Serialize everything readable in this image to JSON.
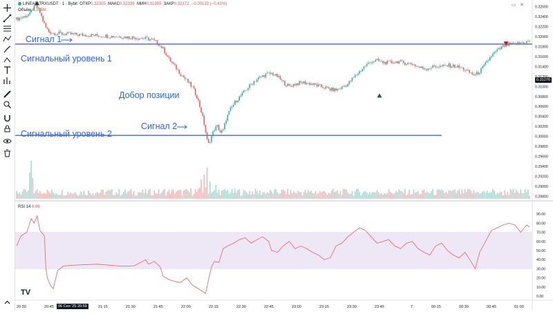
{
  "legend": {
    "symbol": "LINEAR:TRXUSDT · 1 · Bybit",
    "open_label": "ОТКР",
    "open": "0.32305",
    "high_label": "МАКС",
    "high": "0.32339",
    "low_label": "МИН",
    "low": "0.31955",
    "close_label": "ЗАКР",
    "close": "0.32172",
    "change": "−0.00133 (−0.41%)",
    "volume_label": "Объём",
    "volume": "8.355M"
  },
  "rsi": {
    "label": "RSI 14",
    "value": "6.96"
  },
  "annotations": {
    "signal1": "Сигнал 1",
    "level1": "Сигнальный уровень 1",
    "add_position": "Добор позиции",
    "signal2": "Сигнал 2",
    "level2": "Сигнальный уровень 2"
  },
  "current_price_tag": "0.31276",
  "highlighted_time": "06 Сен '25   20:59",
  "logo_text": "TV",
  "colors": {
    "up": "#26a69a",
    "down": "#ef5350",
    "level_line": "#5b7fe3",
    "rsi_line": "#f05c5c",
    "rsi_band": "#ede7f6",
    "annotation": "#2962ff"
  },
  "toolbar_icons": [
    "crosshair-icon",
    "trend-line-icon",
    "fib-icon",
    "brush-icon",
    "text-icon",
    "measure-icon",
    "pattern-icon",
    "prediction-icon",
    "ruler-icon",
    "zoom-icon",
    "magnet-icon",
    "lock-drawing-icon",
    "eye-icon",
    "delete-icon"
  ],
  "chart_data": {
    "type": "candlestick",
    "title": "LINEAR:TRXUSDT · 1 · Bybit",
    "y_ticks": [
      "0.32600",
      "0.32400",
      "0.32200",
      "0.32000",
      "0.31800",
      "0.31600",
      "0.31400",
      "0.31200",
      "0.31000",
      "0.30800",
      "0.30600",
      "0.30400",
      "0.30200",
      "0.30000",
      "0.29800",
      "0.29600",
      "0.29400",
      "0.29200",
      "0.29000",
      "0.28800"
    ],
    "x_ticks": [
      "20:30",
      "20:45",
      "21:15",
      "21:30",
      "21:45",
      "22:00",
      "22:15",
      "22:30",
      "22:45",
      "23:00",
      "23:15",
      "23:30",
      "23:45",
      "7",
      "00:15",
      "00:30",
      "00:45",
      "01:00"
    ],
    "ylim": [
      0.2875,
      0.3265
    ],
    "levels": [
      {
        "name": "Сигнальный уровень 1",
        "price": 0.3185
      },
      {
        "name": "Сигнальный уровень 2",
        "price": 0.3002
      }
    ],
    "price_path": [
      [
        0,
        0.3235
      ],
      [
        5,
        0.324
      ],
      [
        9,
        0.3245
      ],
      [
        11,
        0.3255
      ],
      [
        13,
        0.3262
      ],
      [
        14,
        0.3258
      ],
      [
        16,
        0.3248
      ],
      [
        18,
        0.3232
      ],
      [
        20,
        0.3218
      ],
      [
        22,
        0.321
      ],
      [
        25,
        0.3207
      ],
      [
        30,
        0.3206
      ],
      [
        40,
        0.3204
      ],
      [
        55,
        0.3202
      ],
      [
        70,
        0.32
      ],
      [
        80,
        0.3198
      ],
      [
        88,
        0.3196
      ],
      [
        92,
        0.3194
      ],
      [
        96,
        0.3188
      ],
      [
        100,
        0.3175
      ],
      [
        104,
        0.3155
      ],
      [
        108,
        0.314
      ],
      [
        112,
        0.3125
      ],
      [
        116,
        0.3112
      ],
      [
        120,
        0.3098
      ],
      [
        123,
        0.308
      ],
      [
        126,
        0.305
      ],
      [
        128,
        0.3025
      ],
      [
        130,
        0.2992
      ],
      [
        131,
        0.2985
      ],
      [
        133,
        0.3
      ],
      [
        135,
        0.3015
      ],
      [
        137,
        0.302
      ],
      [
        139,
        0.3008
      ],
      [
        141,
        0.3012
      ],
      [
        143,
        0.3035
      ],
      [
        146,
        0.3055
      ],
      [
        150,
        0.3072
      ],
      [
        154,
        0.3085
      ],
      [
        158,
        0.3098
      ],
      [
        162,
        0.311
      ],
      [
        166,
        0.3118
      ],
      [
        170,
        0.3124
      ],
      [
        174,
        0.3126
      ],
      [
        178,
        0.312
      ],
      [
        182,
        0.3108
      ],
      [
        186,
        0.31
      ],
      [
        190,
        0.3105
      ],
      [
        195,
        0.3108
      ],
      [
        200,
        0.3106
      ],
      [
        205,
        0.3102
      ],
      [
        210,
        0.3098
      ],
      [
        214,
        0.3094
      ],
      [
        218,
        0.3093
      ],
      [
        222,
        0.3098
      ],
      [
        226,
        0.3105
      ],
      [
        230,
        0.3118
      ],
      [
        234,
        0.313
      ],
      [
        238,
        0.3142
      ],
      [
        242,
        0.315
      ],
      [
        246,
        0.3152
      ],
      [
        250,
        0.3148
      ],
      [
        255,
        0.3148
      ],
      [
        260,
        0.315
      ],
      [
        265,
        0.3147
      ],
      [
        270,
        0.3145
      ],
      [
        275,
        0.3138
      ],
      [
        280,
        0.3136
      ],
      [
        285,
        0.314
      ],
      [
        290,
        0.314
      ],
      [
        295,
        0.3142
      ],
      [
        300,
        0.314
      ],
      [
        305,
        0.3135
      ],
      [
        308,
        0.313
      ],
      [
        311,
        0.3125
      ],
      [
        313,
        0.3123
      ],
      [
        316,
        0.313
      ],
      [
        320,
        0.3145
      ],
      [
        324,
        0.3162
      ],
      [
        328,
        0.3172
      ],
      [
        332,
        0.318
      ],
      [
        336,
        0.3184
      ],
      [
        340,
        0.3185
      ],
      [
        345,
        0.3188
      ],
      [
        350,
        0.319
      ]
    ],
    "volume_spikes": [
      [
        9,
        0.38
      ],
      [
        10,
        0.55
      ],
      [
        11,
        0.3
      ],
      [
        126,
        0.28
      ],
      [
        128,
        0.35
      ],
      [
        130,
        0.45
      ],
      [
        132,
        0.25
      ],
      [
        136,
        0.2
      ],
      [
        295,
        0.12
      ],
      [
        330,
        0.1
      ]
    ],
    "rsi_ylim": [
      0,
      100
    ],
    "rsi_ticks": [
      "90.00",
      "80.00",
      "70.00",
      "60.00",
      "50.00",
      "40.00",
      "30.00",
      "20.00",
      "10.00",
      "0.00"
    ],
    "rsi_band": [
      30,
      70
    ],
    "rsi_points": [
      [
        0,
        55
      ],
      [
        3,
        66
      ],
      [
        7,
        70
      ],
      [
        10,
        85
      ],
      [
        12,
        80
      ],
      [
        14,
        88
      ],
      [
        16,
        72
      ],
      [
        18,
        68
      ],
      [
        19,
        66
      ],
      [
        20,
        30
      ],
      [
        21,
        20
      ],
      [
        23,
        12
      ],
      [
        25,
        8
      ],
      [
        28,
        28
      ],
      [
        32,
        33
      ],
      [
        40,
        34
      ],
      [
        55,
        35
      ],
      [
        70,
        33
      ],
      [
        80,
        33
      ],
      [
        86,
        38
      ],
      [
        88,
        40
      ],
      [
        90,
        35
      ],
      [
        94,
        38
      ],
      [
        98,
        32
      ],
      [
        100,
        22
      ],
      [
        104,
        18
      ],
      [
        108,
        16
      ],
      [
        112,
        15
      ],
      [
        116,
        20
      ],
      [
        120,
        12
      ],
      [
        124,
        8
      ],
      [
        127,
        5
      ],
      [
        129,
        3
      ],
      [
        131,
        18
      ],
      [
        133,
        32
      ],
      [
        135,
        38
      ],
      [
        138,
        37
      ],
      [
        141,
        52
      ],
      [
        144,
        55
      ],
      [
        148,
        58
      ],
      [
        152,
        62
      ],
      [
        156,
        64
      ],
      [
        160,
        58
      ],
      [
        164,
        62
      ],
      [
        168,
        65
      ],
      [
        172,
        60
      ],
      [
        174,
        50
      ],
      [
        178,
        48
      ],
      [
        182,
        55
      ],
      [
        186,
        60
      ],
      [
        190,
        52
      ],
      [
        194,
        55
      ],
      [
        198,
        52
      ],
      [
        202,
        48
      ],
      [
        206,
        45
      ],
      [
        210,
        40
      ],
      [
        214,
        42
      ],
      [
        218,
        55
      ],
      [
        222,
        58
      ],
      [
        226,
        65
      ],
      [
        230,
        70
      ],
      [
        234,
        75
      ],
      [
        238,
        72
      ],
      [
        242,
        65
      ],
      [
        246,
        58
      ],
      [
        250,
        60
      ],
      [
        254,
        62
      ],
      [
        258,
        55
      ],
      [
        262,
        52
      ],
      [
        266,
        58
      ],
      [
        270,
        60
      ],
      [
        274,
        52
      ],
      [
        278,
        48
      ],
      [
        282,
        45
      ],
      [
        286,
        55
      ],
      [
        290,
        58
      ],
      [
        294,
        50
      ],
      [
        298,
        45
      ],
      [
        302,
        42
      ],
      [
        306,
        48
      ],
      [
        310,
        38
      ],
      [
        313,
        30
      ],
      [
        316,
        48
      ],
      [
        320,
        60
      ],
      [
        324,
        72
      ],
      [
        328,
        75
      ],
      [
        332,
        78
      ],
      [
        336,
        80
      ],
      [
        340,
        78
      ],
      [
        344,
        70
      ],
      [
        348,
        78
      ],
      [
        350,
        76
      ]
    ]
  }
}
